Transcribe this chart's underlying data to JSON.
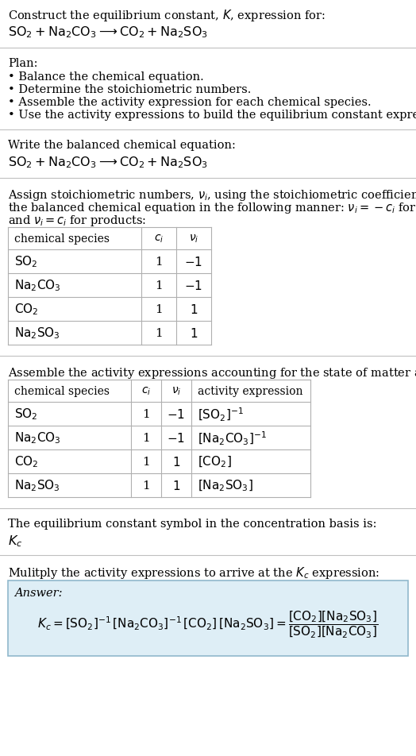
{
  "title_line1": "Construct the equilibrium constant, $K$, expression for:",
  "title_line2": "$\\mathrm{SO_2 + Na_2CO_3 \\longrightarrow CO_2 + Na_2SO_3}$",
  "plan_header": "Plan:",
  "plan_items": [
    "• Balance the chemical equation.",
    "• Determine the stoichiometric numbers.",
    "• Assemble the activity expression for each chemical species.",
    "• Use the activity expressions to build the equilibrium constant expression."
  ],
  "balanced_header": "Write the balanced chemical equation:",
  "balanced_eq": "$\\mathrm{SO_2 + Na_2CO_3 \\longrightarrow CO_2 + Na_2SO_3}$",
  "stoich_intro1": "Assign stoichiometric numbers, $\\nu_i$, using the stoichiometric coefficients, $c_i$, from",
  "stoich_intro2": "the balanced chemical equation in the following manner: $\\nu_i = -c_i$ for reactants",
  "stoich_intro3": "and $\\nu_i = c_i$ for products:",
  "table1_headers": [
    "chemical species",
    "$c_i$",
    "$\\nu_i$"
  ],
  "table1_rows": [
    [
      "$\\mathrm{SO_2}$",
      "1",
      "$-1$"
    ],
    [
      "$\\mathrm{Na_2CO_3}$",
      "1",
      "$-1$"
    ],
    [
      "$\\mathrm{CO_2}$",
      "1",
      "$1$"
    ],
    [
      "$\\mathrm{Na_2SO_3}$",
      "1",
      "$1$"
    ]
  ],
  "activity_intro": "Assemble the activity expressions accounting for the state of matter and $\\nu_i$:",
  "table2_headers": [
    "chemical species",
    "$c_i$",
    "$\\nu_i$",
    "activity expression"
  ],
  "table2_rows": [
    [
      "$\\mathrm{SO_2}$",
      "1",
      "$-1$",
      "$[\\mathrm{SO_2}]^{-1}$"
    ],
    [
      "$\\mathrm{Na_2CO_3}$",
      "1",
      "$-1$",
      "$[\\mathrm{Na_2CO_3}]^{-1}$"
    ],
    [
      "$\\mathrm{CO_2}$",
      "1",
      "$1$",
      "$[\\mathrm{CO_2}]$"
    ],
    [
      "$\\mathrm{Na_2SO_3}$",
      "1",
      "$1$",
      "$[\\mathrm{Na_2SO_3}]$"
    ]
  ],
  "kc_symbol_text": "The equilibrium constant symbol in the concentration basis is:",
  "kc_symbol": "$K_c$",
  "multiply_text": "Mulitply the activity expressions to arrive at the $K_c$ expression:",
  "answer_label": "Answer:",
  "answer_line1": "$K_c = [\\mathrm{SO_2}]^{-1}\\,[\\mathrm{Na_2CO_3}]^{-1}\\,[\\mathrm{CO_2}]\\,[\\mathrm{Na_2SO_3}] = \\dfrac{[\\mathrm{CO_2}][\\mathrm{Na_2SO_3}]}{[\\mathrm{SO_2}][\\mathrm{Na_2CO_3}]}$",
  "bg_color": "#ffffff",
  "text_color": "#000000",
  "table_border_color": "#b0b0b0",
  "answer_box_fill": "#deeef6",
  "answer_box_border": "#90b8cc",
  "font_size": 10.5,
  "chem_font_size": 11.5
}
